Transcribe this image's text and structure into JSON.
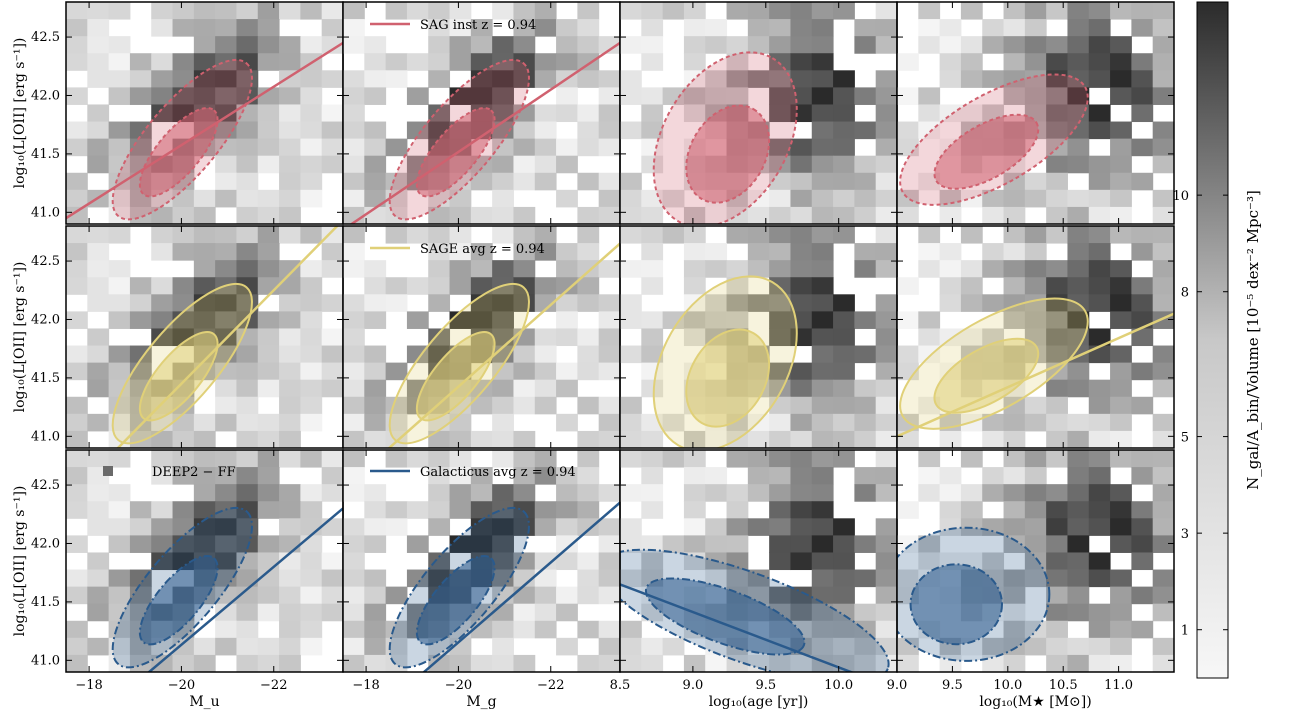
{
  "figure": {
    "row_ylabel": "log₁₀(L[OII] [erg s⁻¹])",
    "colorbar": {
      "label": "N_gal/A_bin/Volume [10⁻⁵ dex⁻² Mpc⁻³]",
      "ticks": [
        "1",
        "3",
        "5",
        "8",
        "10"
      ],
      "colors": {
        "low": "#f7f7f7",
        "high": "#2b2b2b"
      }
    },
    "column_xlabels": [
      "M_u",
      "M_g",
      "log₁₀(age [yr])",
      "log₁₀(M★ [M⊙])"
    ],
    "legends": {
      "sag": "SAG inst z = 0.94",
      "sage": "SAGE avg z = 0.94",
      "deep2": "DEEP2 − FF",
      "galacticus": "Galacticus avg z = 0.94"
    },
    "model_colors": {
      "sag": "#d0616f",
      "sage": "#e0d078",
      "galacticus": "#2a5a8c"
    }
  },
  "chart_data": [
    {
      "type": "heatmap",
      "description_overlay": "contour + linear fit per model row",
      "columns": [
        {
          "xlabel": "M_u",
          "xlim": [
            -17.5,
            -23.5
          ],
          "xticks": [
            "−18",
            "−20",
            "−22"
          ],
          "xtick_values": [
            -18,
            -20,
            -22
          ]
        },
        {
          "xlabel": "M_g",
          "xlim": [
            -17.5,
            -23.5
          ],
          "xticks": [
            "−18",
            "−20",
            "−22"
          ],
          "xtick_values": [
            -18,
            -20,
            -22
          ]
        },
        {
          "xlabel": "log₁₀(age [yr])",
          "xlim": [
            8.5,
            10.4
          ],
          "xticks": [
            "8.5",
            "9.0",
            "9.5",
            "10.0"
          ],
          "xtick_values": [
            8.5,
            9.0,
            9.5,
            10.0
          ]
        },
        {
          "xlabel": "log₁₀(M★ [M⊙])",
          "xlim": [
            9.0,
            11.5
          ],
          "xticks": [
            "9.0",
            "9.5",
            "10.0",
            "10.5",
            "11.0"
          ],
          "xtick_values": [
            9.0,
            9.5,
            10.0,
            10.5,
            11.0
          ]
        }
      ],
      "ylim": [
        40.9,
        42.8
      ],
      "yticks": [
        "41.0",
        "41.5",
        "42.0",
        "42.5"
      ],
      "ytick_values": [
        41.0,
        41.5,
        42.0,
        42.5
      ],
      "rows": [
        {
          "model": "SAG inst z = 0.94",
          "color": "#d0616f",
          "fits": [
            {
              "x": [
                -17.5,
                -23.5
              ],
              "y": [
                40.95,
                42.45
              ]
            },
            {
              "x": [
                -17.5,
                -23.5
              ],
              "y": [
                40.85,
                42.45
              ]
            },
            null,
            null
          ]
        },
        {
          "model": "SAGE avg z = 0.94",
          "color": "#e0d078",
          "fits": [
            {
              "x": [
                -17.5,
                -23.5
              ],
              "y": [
                40.45,
                42.85
              ]
            },
            {
              "x": [
                -17.5,
                -23.5
              ],
              "y": [
                40.55,
                42.65
              ]
            },
            null,
            {
              "x": [
                9.0,
                11.5
              ],
              "y": [
                41.0,
                42.05
              ]
            }
          ]
        },
        {
          "model": "Galacticus avg z = 0.94",
          "color": "#2a5a8c",
          "fits": [
            {
              "x": [
                -17.5,
                -23.5
              ],
              "y": [
                40.3,
                42.3
              ]
            },
            {
              "x": [
                -17.5,
                -23.5
              ],
              "y": [
                40.3,
                42.35
              ]
            },
            {
              "x": [
                8.5,
                10.4
              ],
              "y": [
                41.65,
                40.75
              ]
            },
            null
          ]
        }
      ]
    }
  ]
}
